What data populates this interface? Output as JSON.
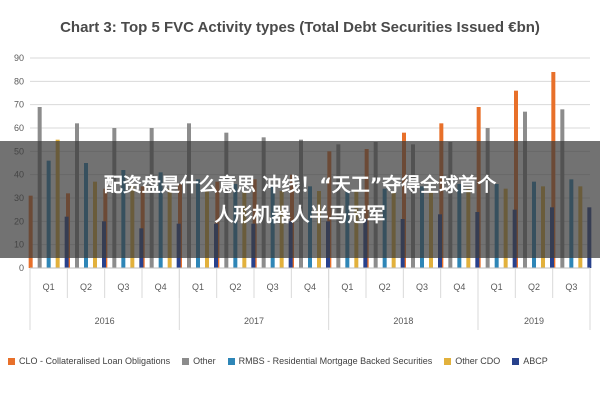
{
  "chart_data": {
    "type": "bar",
    "title": "Chart 3: Top 5 FVC Activity types (Total Debt Securities Issued €bn)",
    "xlabel": "",
    "ylabel": "",
    "ylim": [
      0,
      90
    ],
    "yticks": [
      0,
      10,
      20,
      30,
      40,
      50,
      60,
      70,
      80,
      90
    ],
    "grid": true,
    "legend_position": "bottom",
    "categories": [
      "Q1",
      "Q2",
      "Q3",
      "Q4",
      "Q1",
      "Q2",
      "Q3",
      "Q4",
      "Q1",
      "Q2",
      "Q3",
      "Q4",
      "Q1",
      "Q2",
      "Q3"
    ],
    "year_groups": [
      {
        "label": "2016",
        "count": 4
      },
      {
        "label": "2017",
        "count": 4
      },
      {
        "label": "2018",
        "count": 4
      },
      {
        "label": "2019",
        "count": 3
      }
    ],
    "series": [
      {
        "name": "CLO - Collateralised Loan Obligations",
        "color": "#E8702A",
        "values": [
          31,
          32,
          34,
          35,
          36,
          37,
          38,
          40,
          50,
          51,
          58,
          62,
          69,
          76,
          84
        ]
      },
      {
        "name": "Other",
        "color": "#8C8C8C",
        "values": [
          69,
          62,
          60,
          60,
          62,
          58,
          56,
          55,
          53,
          54,
          53,
          54,
          60,
          67,
          68
        ]
      },
      {
        "name": "RMBS - Residential Mortgage Backed Securities",
        "color": "#2E86B7",
        "values": [
          46,
          45,
          42,
          41,
          38,
          36,
          35,
          35,
          33,
          34,
          35,
          36,
          36,
          37,
          38
        ]
      },
      {
        "name": "Other CDO",
        "color": "#E2B13C",
        "values": [
          55,
          37,
          35,
          34,
          33,
          33,
          33,
          33,
          33,
          33,
          33,
          34,
          34,
          35,
          35
        ]
      },
      {
        "name": "ABCP",
        "color": "#28418C",
        "values": [
          22,
          20,
          17,
          19,
          19,
          19,
          20,
          20,
          21,
          21,
          23,
          24,
          25,
          26,
          26
        ]
      }
    ]
  },
  "overlay": {
    "line1": "配资盘是什么意思 冲线！“天工”夺得全球首个",
    "line2": "人形机器人半马冠军"
  }
}
